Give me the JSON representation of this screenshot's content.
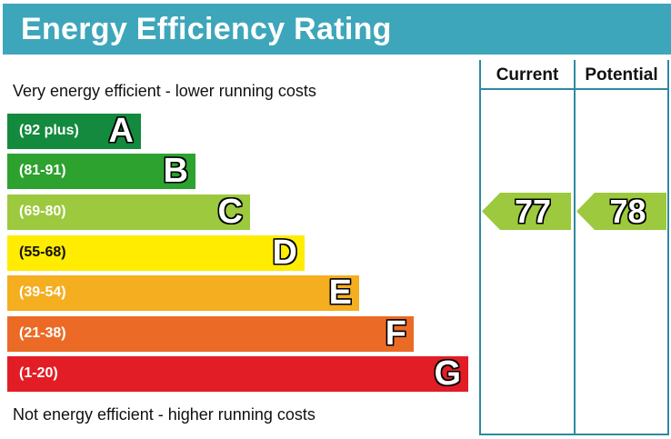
{
  "chart_data": {
    "type": "bar",
    "title": "Energy Efficiency Rating",
    "top_caption": "Very energy efficient - lower running costs",
    "bottom_caption": "Not energy efficient - higher running costs",
    "columns": [
      "Current",
      "Potential"
    ],
    "bands": [
      {
        "letter": "A",
        "range": "(92 plus)",
        "color": "#138a3d"
      },
      {
        "letter": "B",
        "range": "(81-91)",
        "color": "#2da22f"
      },
      {
        "letter": "C",
        "range": "(69-80)",
        "color": "#9cc93d"
      },
      {
        "letter": "D",
        "range": "(55-68)",
        "color": "#ffec00"
      },
      {
        "letter": "E",
        "range": "(39-54)",
        "color": "#f4ae1f"
      },
      {
        "letter": "F",
        "range": "(21-38)",
        "color": "#eb6b26"
      },
      {
        "letter": "G",
        "range": "(1-20)",
        "color": "#e21d26"
      }
    ],
    "current": {
      "value": "77",
      "band": "C",
      "color": "#9cc93d"
    },
    "potential": {
      "value": "78",
      "band": "C",
      "color": "#9cc93d"
    }
  }
}
